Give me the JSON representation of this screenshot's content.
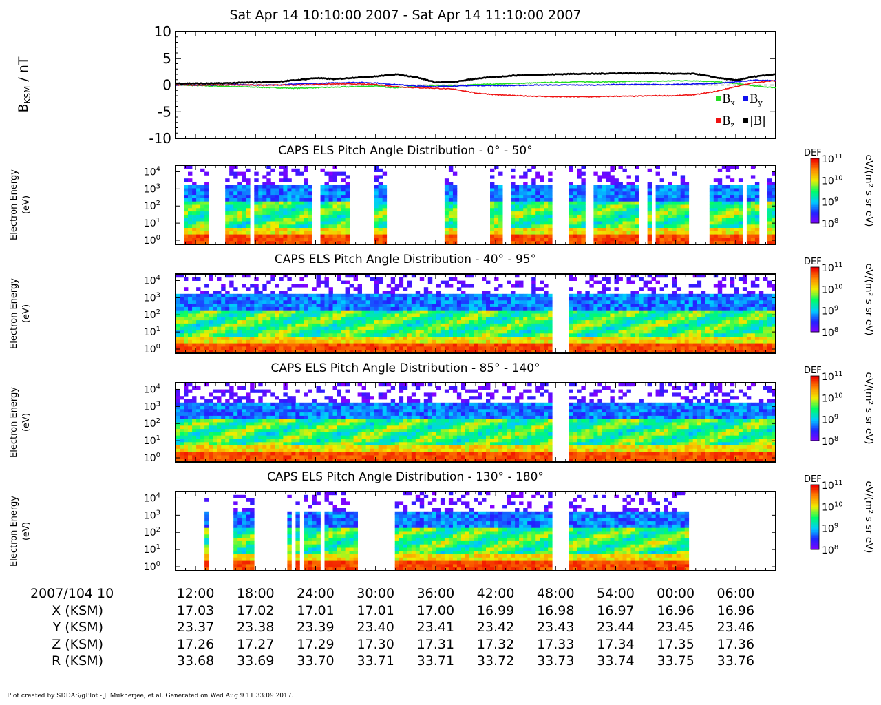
{
  "title": "Sat Apr 14 10:10:00 2007 - Sat Apr 14 11:10:00 2007",
  "footer": "Plot created by SDDAS/gPlot - J. Mukherjee, et al.  Generated on Wed Aug 9 11:33:09 2017.",
  "colors": {
    "bx": "#22dd22",
    "by": "#1010ee",
    "bz": "#ee1111",
    "bmag": "#000000",
    "colormap": [
      "#8800ff",
      "#2222ff",
      "#00ccff",
      "#00ff66",
      "#eeee00",
      "#ff8800",
      "#ee0000"
    ]
  },
  "chart_data": [
    {
      "type": "line",
      "ylabel_main": "B",
      "ylabel_sub": "KSM",
      "ylabel_tail": " / nT",
      "ylim": [
        -10,
        10
      ],
      "yticks": [
        "10",
        "5",
        "0",
        "-5",
        "-10"
      ],
      "x_minutes": [
        0,
        2,
        4,
        6,
        8,
        10,
        12,
        14,
        16,
        18,
        20,
        22,
        24,
        26,
        28,
        30,
        32,
        34,
        36,
        38,
        40,
        42,
        44,
        46,
        48,
        50,
        52,
        54,
        56,
        58,
        60
      ],
      "zero_line": "dashed",
      "legend": [
        {
          "label": "B",
          "sub": "x",
          "color_key": "bx"
        },
        {
          "label": "B",
          "sub": "y",
          "color_key": "by"
        },
        {
          "label": "B",
          "sub": "z",
          "color_key": "bz"
        },
        {
          "label": "|B|",
          "sub": "",
          "color_key": "bmag"
        }
      ],
      "series": [
        {
          "name": "Bx",
          "color_key": "bx",
          "values": [
            0,
            -0.1,
            -0.2,
            -0.3,
            -0.4,
            -0.5,
            -0.6,
            -0.5,
            -0.4,
            -0.3,
            -0.2,
            -0.5,
            -0.3,
            -0.1,
            -0.2,
            0.1,
            0.2,
            0.3,
            0.4,
            0.5,
            0.6,
            0.6,
            0.6,
            0.7,
            0.7,
            0.8,
            0.8,
            0.6,
            0.3,
            -0.2,
            -0.5
          ]
        },
        {
          "name": "By",
          "color_key": "by",
          "values": [
            0,
            0,
            0,
            0.1,
            0,
            0,
            0.2,
            0.3,
            0.4,
            0.5,
            0.4,
            0.1,
            -0.2,
            -0.3,
            -0.2,
            -0.1,
            -0.1,
            -0.1,
            0,
            0,
            0,
            0,
            0.1,
            0.1,
            0.1,
            0.1,
            0.2,
            0.3,
            0.6,
            0.9,
            0.8
          ]
        },
        {
          "name": "Bz",
          "color_key": "bz",
          "values": [
            0,
            0,
            0,
            0,
            0,
            0,
            0,
            0.1,
            0.2,
            0.2,
            0.1,
            -0.3,
            -0.5,
            -0.6,
            -0.8,
            -1.5,
            -1.8,
            -2.0,
            -2.1,
            -2.2,
            -2.2,
            -2.2,
            -2.1,
            -2.1,
            -2.0,
            -2.0,
            -1.8,
            -1.2,
            -0.3,
            0.5,
            0.8
          ]
        },
        {
          "name": "|B|",
          "color_key": "bmag",
          "values": [
            0.3,
            0.3,
            0.3,
            0.4,
            0.5,
            0.6,
            0.9,
            1.3,
            1.1,
            1.4,
            1.6,
            2.0,
            1.5,
            0.5,
            0.6,
            1.2,
            1.5,
            1.8,
            1.9,
            2.0,
            2.1,
            2.1,
            2.2,
            2.2,
            2.2,
            2.1,
            2.1,
            1.4,
            0.9,
            1.6,
            2.0
          ]
        }
      ]
    },
    {
      "type": "heatmap",
      "title": "CAPS ELS Pitch Angle Distribution - 0° - 50°",
      "ylabel": [
        "Electron Energy",
        "(eV)"
      ],
      "yscale": "log",
      "y_exponents": [
        0,
        1,
        2,
        3,
        4
      ],
      "colorbar": {
        "label": "DEF",
        "unit": "eV/(m² s sr eV)",
        "exponents": [
          11,
          10,
          9,
          8
        ]
      },
      "coverage_minutes": [
        [
          1,
          3.5
        ],
        [
          5,
          7.5
        ],
        [
          8,
          13.5
        ],
        [
          14.5,
          17.5
        ],
        [
          20,
          21
        ],
        [
          27,
          28
        ],
        [
          31.5,
          32.5
        ],
        [
          33.5,
          37.5
        ],
        [
          39.5,
          41
        ],
        [
          42,
          46.5
        ],
        [
          47,
          47.7
        ],
        [
          48,
          51.5
        ],
        [
          53.5,
          56.5
        ],
        [
          57,
          58.5
        ],
        [
          59,
          60
        ]
      ]
    },
    {
      "type": "heatmap",
      "title": "CAPS ELS Pitch Angle Distribution - 40° - 95°",
      "ylabel": [
        "Electron Energy",
        "(eV)"
      ],
      "yscale": "log",
      "y_exponents": [
        0,
        1,
        2,
        3,
        4
      ],
      "colorbar": {
        "label": "DEF",
        "unit": "eV/(m² s sr eV)",
        "exponents": [
          11,
          10,
          9,
          8
        ]
      },
      "coverage_minutes": [
        [
          0,
          37.5
        ],
        [
          39.5,
          60
        ]
      ]
    },
    {
      "type": "heatmap",
      "title": "CAPS ELS Pitch Angle Distribution - 85° - 140°",
      "ylabel": [
        "Electron Energy",
        "(eV)"
      ],
      "yscale": "log",
      "y_exponents": [
        0,
        1,
        2,
        3,
        4
      ],
      "colorbar": {
        "label": "DEF",
        "unit": "eV/(m² s sr eV)",
        "exponents": [
          11,
          10,
          9,
          8
        ]
      },
      "coverage_minutes": [
        [
          0,
          37.5
        ],
        [
          39.5,
          60
        ]
      ]
    },
    {
      "type": "heatmap",
      "title": "CAPS ELS Pitch Angle Distribution - 130° - 180°",
      "ylabel": [
        "Electron Energy",
        "(eV)"
      ],
      "yscale": "log",
      "y_exponents": [
        0,
        1,
        2,
        3,
        4
      ],
      "colorbar": {
        "label": "DEF",
        "unit": "eV/(m² s sr eV)",
        "exponents": [
          11,
          10,
          9,
          8
        ]
      },
      "coverage_minutes": [
        [
          3,
          3.5
        ],
        [
          6,
          8
        ],
        [
          11,
          11.5
        ],
        [
          12,
          12.5
        ],
        [
          13,
          14.5
        ],
        [
          15,
          18
        ],
        [
          22,
          37.5
        ],
        [
          39.5,
          51.5
        ]
      ]
    }
  ],
  "axis": {
    "range_minutes": [
      0,
      60
    ],
    "label_rows": [
      "2007/104 10",
      "X (KSM)",
      "Y (KSM)",
      "Z (KSM)",
      "R (KSM)"
    ],
    "ticks": [
      {
        "minute": 2,
        "time": "12:00",
        "x": "17.03",
        "y": "23.37",
        "z": "17.26",
        "r": "33.68"
      },
      {
        "minute": 8,
        "time": "18:00",
        "x": "17.02",
        "y": "23.38",
        "z": "17.27",
        "r": "33.69"
      },
      {
        "minute": 14,
        "time": "24:00",
        "x": "17.01",
        "y": "23.39",
        "z": "17.29",
        "r": "33.70"
      },
      {
        "minute": 20,
        "time": "30:00",
        "x": "17.01",
        "y": "23.40",
        "z": "17.30",
        "r": "33.71"
      },
      {
        "minute": 26,
        "time": "36:00",
        "x": "17.00",
        "y": "23.41",
        "z": "17.31",
        "r": "33.71"
      },
      {
        "minute": 32,
        "time": "42:00",
        "x": "16.99",
        "y": "23.42",
        "z": "17.32",
        "r": "33.72"
      },
      {
        "minute": 38,
        "time": "48:00",
        "x": "16.98",
        "y": "23.43",
        "z": "17.33",
        "r": "33.73"
      },
      {
        "minute": 44,
        "time": "54:00",
        "x": "16.97",
        "y": "23.44",
        "z": "17.34",
        "r": "33.74"
      },
      {
        "minute": 50,
        "time": "00:00",
        "x": "16.96",
        "y": "23.45",
        "z": "17.35",
        "r": "33.75"
      },
      {
        "minute": 56,
        "time": "06:00",
        "x": "16.96",
        "y": "23.46",
        "z": "17.36",
        "r": "33.76"
      }
    ]
  }
}
